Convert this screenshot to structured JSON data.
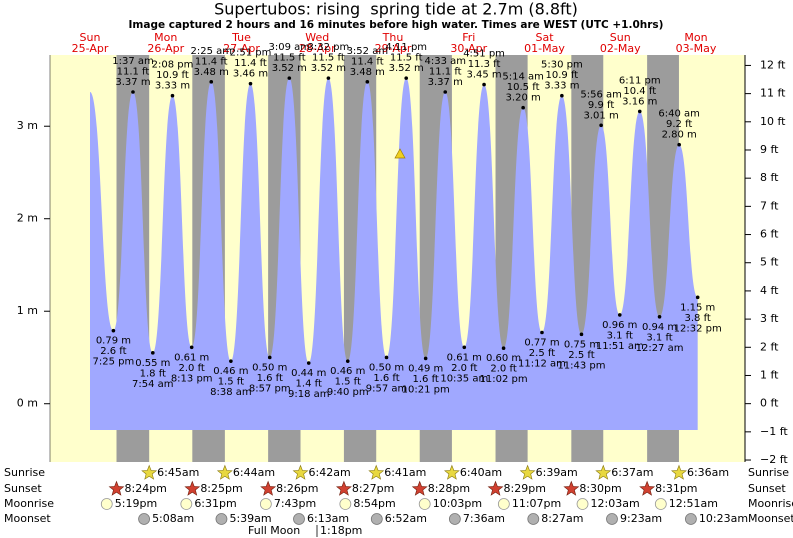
{
  "chart_data": {
    "type": "tide",
    "title": "Supertubos: rising  spring tide at 2.7m (8.8ft)",
    "subtitle": "Image captured 2 hours and 16 minutes before high water. Times are WEST (UTC +1.0hrs)",
    "days": [
      "Sun",
      "Mon",
      "Tue",
      "Wed",
      "Thu",
      "Fri",
      "Sat",
      "Sun",
      "Mon"
    ],
    "dates": [
      "25-Apr",
      "26-Apr",
      "27-Apr",
      "28-Apr",
      "29-Apr",
      "30-Apr",
      "01-May",
      "02-May",
      "03-May"
    ],
    "x": [
      "7:25 pm",
      "1:37 am",
      "7:54 am",
      "2:08 pm",
      "8:13 pm",
      "2:25 am",
      "8:38 am",
      "2:51 pm",
      "8:57 pm",
      "3:09 am",
      "9:18 am",
      "3:32 pm",
      "9:40 pm",
      "3:52 am",
      "9:57 am",
      "4:11 pm",
      "10:21 pm",
      "4:33 am",
      "10:35 am",
      "4:51 pm",
      "11:02 pm",
      "5:14 am",
      "11:12 am",
      "5:30 pm",
      "11:43 pm",
      "5:56 am",
      "11:51 am",
      "6:11 pm",
      "12:27 am",
      "6:40 am",
      "12:32 pm"
    ],
    "values": [
      0.79,
      3.37,
      0.55,
      3.33,
      0.61,
      3.48,
      0.46,
      3.46,
      0.5,
      3.52,
      0.44,
      3.52,
      0.46,
      3.48,
      0.5,
      3.52,
      0.49,
      3.37,
      0.61,
      3.45,
      0.6,
      3.2,
      0.77,
      3.33,
      0.75,
      3.01,
      0.96,
      3.16,
      0.94,
      2.8,
      1.15
    ],
    "value_labels": [
      "0.79 m",
      "3.37 m",
      "0.55 m",
      "3.33 m",
      "0.61 m",
      "3.48 m",
      "0.46 m",
      "3.46 m",
      "0.50 m",
      "3.52 m",
      "0.44 m",
      "3.52 m",
      "0.46 m",
      "3.48 m",
      "0.50 m",
      "3.52 m",
      "0.49 m",
      "3.37 m",
      "0.61 m",
      "3.45 m",
      "0.60 m",
      "3.20 m",
      "0.77 m",
      "3.33 m",
      "0.75 m",
      "3.01 m",
      "0.96 m",
      "3.16 m",
      "0.94 m",
      "2.80 m",
      "1.15 m"
    ],
    "ft_labels": [
      "2.6 ft",
      "11.1 ft",
      "1.8 ft",
      "10.9 ft",
      "2.0 ft",
      "11.4 ft",
      "1.5 ft",
      "11.4 ft",
      "1.6 ft",
      "11.5 ft",
      "1.4 ft",
      "11.5 ft",
      "1.5 ft",
      "11.4 ft",
      "1.6 ft",
      "11.5 ft",
      "1.6 ft",
      "11.1 ft",
      "2.0 ft",
      "11.3 ft",
      "2.0 ft",
      "10.5 ft",
      "2.5 ft",
      "10.9 ft",
      "2.5 ft",
      "9.9 ft",
      "3.1 ft",
      "10.4 ft",
      "3.1 ft",
      "9.2 ft",
      "3.8 ft"
    ],
    "color": "#a0a8ff",
    "ylim": [
      -0.63,
      3.77
    ],
    "yticks": [
      {
        "value": 0,
        "label": "0 m"
      },
      {
        "value": 1,
        "label": "1 m"
      },
      {
        "value": 2,
        "label": "2 m"
      },
      {
        "value": 3,
        "label": "3 m"
      }
    ],
    "y2lim": [
      -2.07,
      12.37
    ],
    "y2ticks": [
      {
        "value": -2,
        "label": "−2 ft"
      },
      {
        "value": -1,
        "label": "−1 ft"
      },
      {
        "value": 0,
        "label": "0 ft"
      },
      {
        "value": 1,
        "label": "1 ft"
      },
      {
        "value": 2,
        "label": "2 ft"
      },
      {
        "value": 3,
        "label": "3 ft"
      },
      {
        "value": 4,
        "label": "4 ft"
      },
      {
        "value": 5,
        "label": "5 ft"
      },
      {
        "value": 6,
        "label": "6 ft"
      },
      {
        "value": 7,
        "label": "7 ft"
      },
      {
        "value": 8,
        "label": "8 ft"
      },
      {
        "value": 9,
        "label": "9 ft"
      },
      {
        "value": 10,
        "label": "10 ft"
      },
      {
        "value": 11,
        "label": "11 ft"
      },
      {
        "value": 12,
        "label": "12 ft"
      }
    ],
    "astro": [
      {
        "label": "Sunrise",
        "times": [
          "6:45am",
          "6:44am",
          "6:42am",
          "6:41am",
          "6:40am",
          "6:39am",
          "6:37am",
          "6:36am"
        ]
      },
      {
        "label": "Sunset",
        "times": [
          "8:24pm",
          "8:25pm",
          "8:26pm",
          "8:27pm",
          "8:28pm",
          "8:29pm",
          "8:30pm",
          "8:31pm"
        ]
      },
      {
        "label": "Moonrise",
        "times": [
          "5:19pm",
          "6:31pm",
          "7:43pm",
          "8:54pm",
          "10:03pm",
          "11:07pm",
          "12:03am",
          "12:51am"
        ]
      },
      {
        "label": "Moonset",
        "times": [
          "5:08am",
          "5:39am",
          "6:13am",
          "6:52am",
          "7:36am",
          "8:27am",
          "9:23am",
          "10:23am"
        ]
      }
    ],
    "moon_phase": {
      "label": "Full Moon",
      "time": "1:18pm"
    }
  }
}
